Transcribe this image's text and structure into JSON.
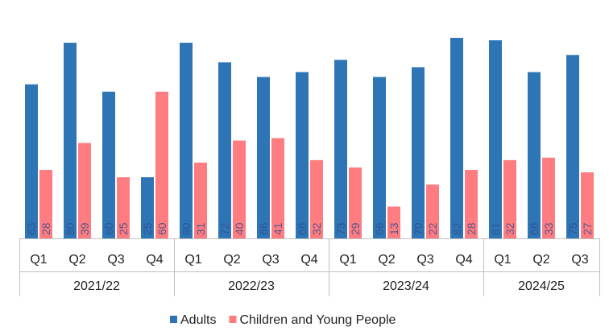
{
  "chart_data": {
    "type": "bar",
    "title": "",
    "xlabel": "",
    "ylabel": "",
    "ylim": [
      0,
      85
    ],
    "grid": false,
    "legend_position": "bottom",
    "colors": {
      "Adults": "#2e75b6",
      "Children and Young People": "#ff7c80"
    },
    "groups": [
      {
        "label": "2021/22",
        "quarters": [
          "Q1",
          "Q2",
          "Q3",
          "Q4"
        ]
      },
      {
        "label": "2022/23",
        "quarters": [
          "Q1",
          "Q2",
          "Q3",
          "Q4"
        ]
      },
      {
        "label": "2023/24",
        "quarters": [
          "Q1",
          "Q2",
          "Q3",
          "Q4"
        ]
      },
      {
        "label": "2024/25",
        "quarters": [
          "Q1",
          "Q2",
          "Q3"
        ]
      }
    ],
    "series": [
      {
        "name": "Adults",
        "values": [
          63,
          80,
          60,
          25,
          80,
          72,
          66,
          68,
          73,
          66,
          70,
          82,
          81,
          68,
          75
        ]
      },
      {
        "name": "Children and Young People",
        "values": [
          28,
          39,
          25,
          60,
          31,
          40,
          41,
          32,
          29,
          13,
          22,
          28,
          32,
          33,
          27
        ]
      }
    ]
  }
}
